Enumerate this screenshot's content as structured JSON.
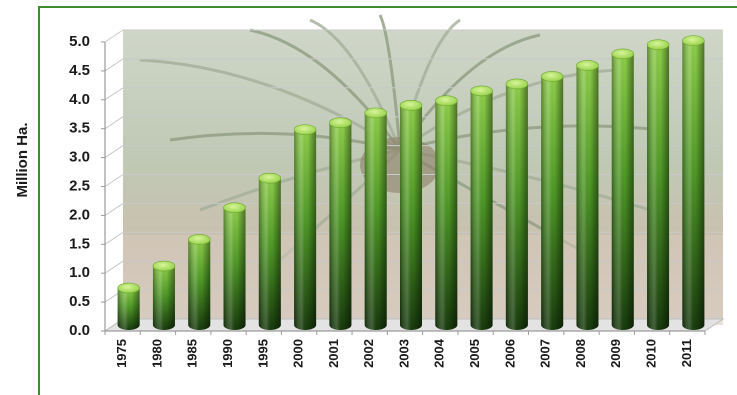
{
  "colors": {
    "frame": "#3f8a2a",
    "bar_top": "#b9e36a",
    "bar_light": "#7fc63a",
    "bar_dark": "#1f4d12",
    "grid": "#c9c9c9"
  },
  "chart_data": {
    "type": "bar",
    "title": "",
    "xlabel": "",
    "ylabel": "Million Ha.",
    "ylim": [
      0,
      5.0
    ],
    "y_ticks": [
      "0.0",
      "0.5",
      "1.0",
      "1.5",
      "2.0",
      "2.5",
      "3.0",
      "3.5",
      "4.0",
      "4.5",
      "5.0"
    ],
    "grid": true,
    "background": "oil palm tree photograph",
    "categories": [
      "1975",
      "1980",
      "1985",
      "1990",
      "1995",
      "2000",
      "2001",
      "2002",
      "2003",
      "2004",
      "2005",
      "2006",
      "2007",
      "2008",
      "2009",
      "2010",
      "2011"
    ],
    "values": [
      0.64,
      1.02,
      1.48,
      2.03,
      2.54,
      3.38,
      3.5,
      3.67,
      3.8,
      3.88,
      4.05,
      4.17,
      4.3,
      4.49,
      4.69,
      4.85,
      4.92
    ]
  }
}
